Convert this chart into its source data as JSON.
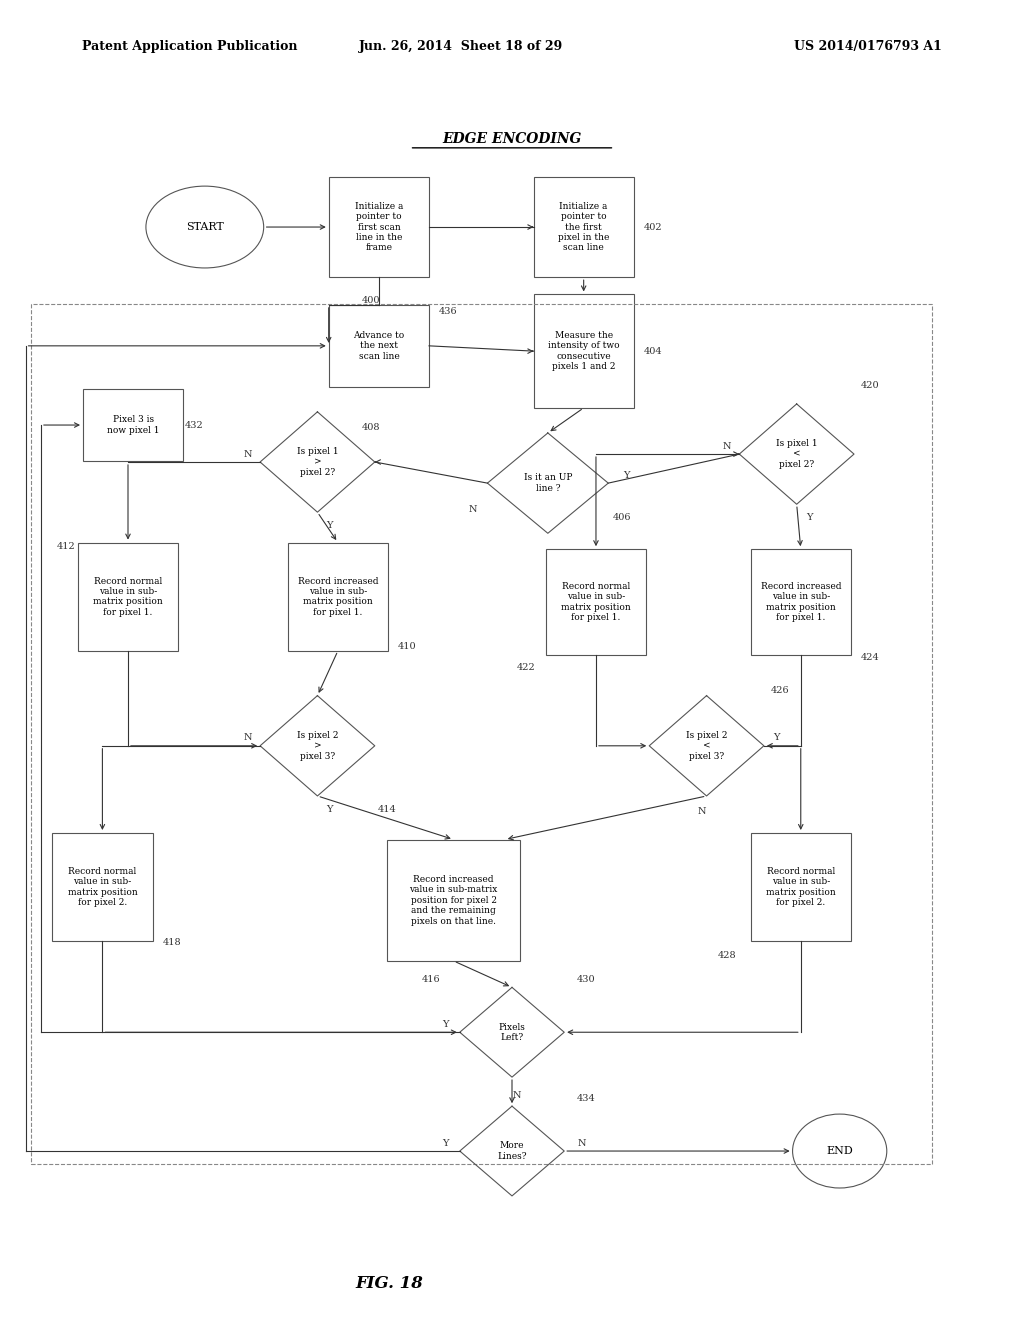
{
  "title": "EDGE ENCODING",
  "header_left": "Patent Application Publication",
  "header_center": "Jun. 26, 2014  Sheet 18 of 29",
  "header_right": "US 2014/0176793 A1",
  "fig_label": "FIG. 18",
  "background_color": "#ffffff",
  "text_color": "#000000"
}
